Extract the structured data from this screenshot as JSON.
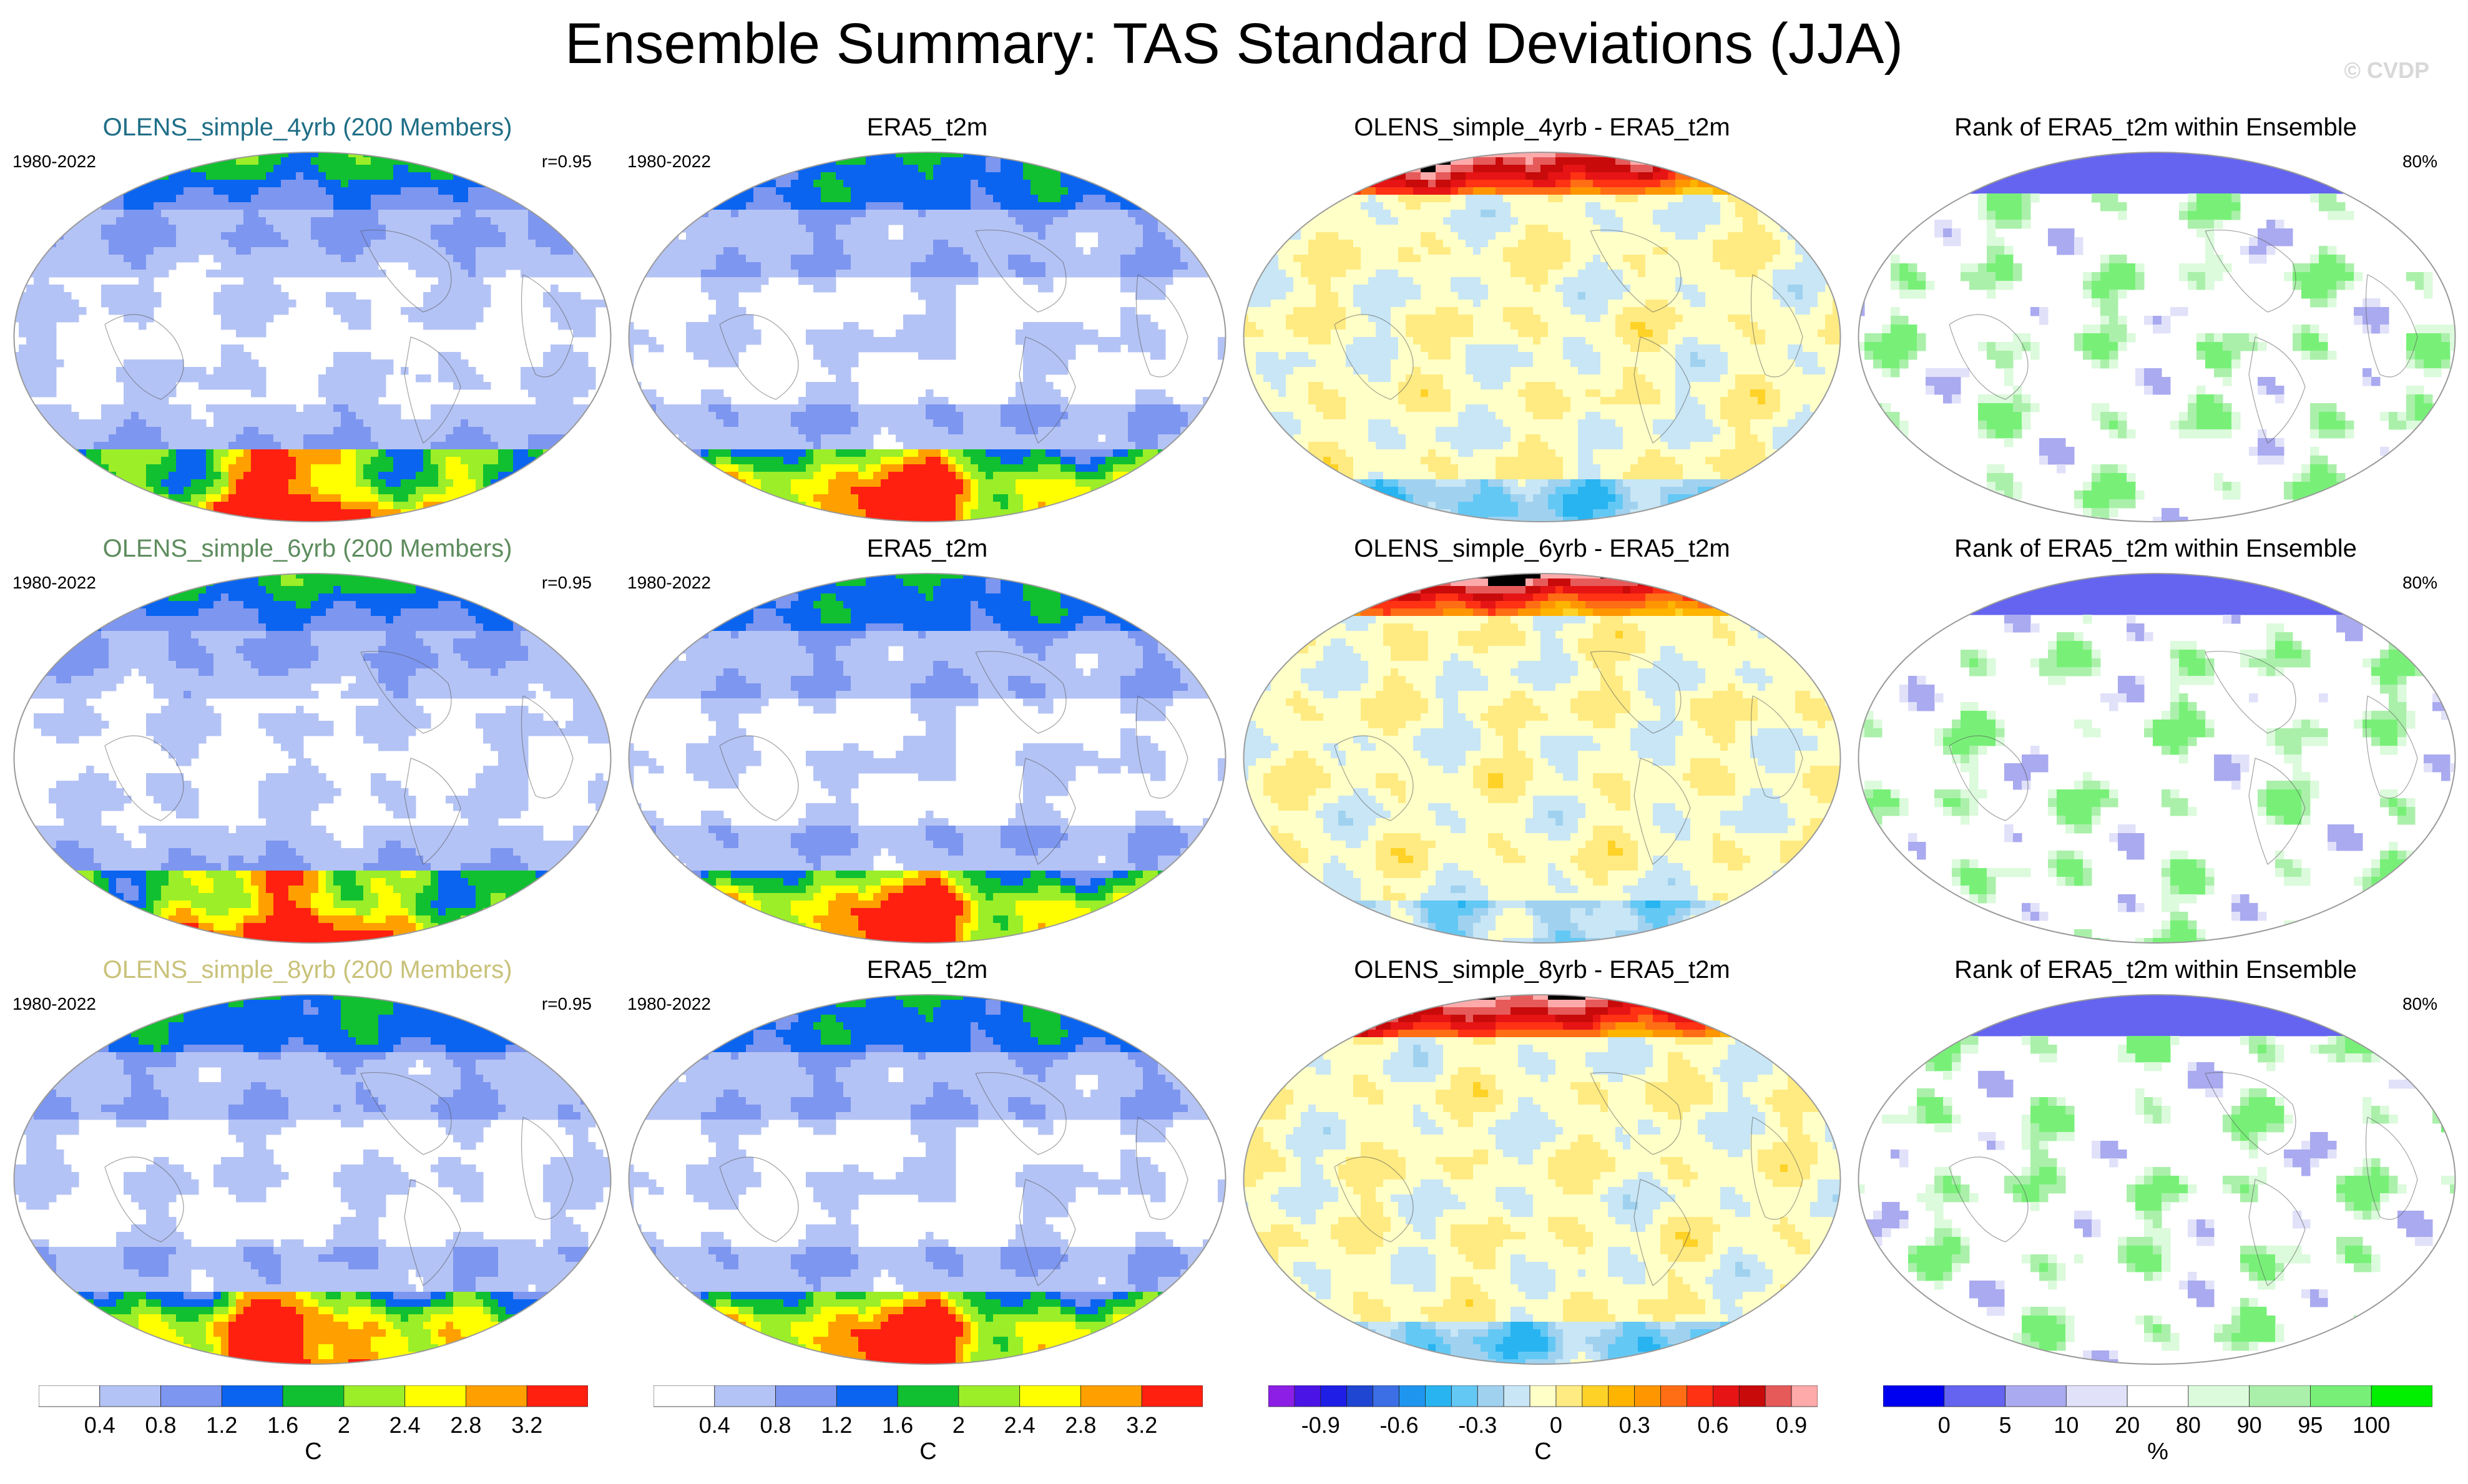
{
  "title": "Ensemble Summary: TAS Standard Deviations (JJA)",
  "watermark": "© CVDP",
  "rows": [
    {
      "ensemble_title": "OLENS_simple_4yrb (200 Members)",
      "ensemble_title_color": "#1f6e86",
      "period": "1980-2022",
      "pattern_corr": "r=0.95",
      "obs_title": "ERA5_t2m",
      "obs_period": "1980-2022",
      "diff_title": "OLENS_simple_4yrb - ERA5_t2m",
      "rank_title": "Rank of ERA5_t2m within Ensemble",
      "rank_pct": "80%"
    },
    {
      "ensemble_title": "OLENS_simple_6yrb (200 Members)",
      "ensemble_title_color": "#5e8c5e",
      "period": "1980-2022",
      "pattern_corr": "r=0.95",
      "obs_title": "ERA5_t2m",
      "obs_period": "1980-2022",
      "diff_title": "OLENS_simple_6yrb - ERA5_t2m",
      "rank_title": "Rank of ERA5_t2m within Ensemble",
      "rank_pct": "80%"
    },
    {
      "ensemble_title": "OLENS_simple_8yrb (200 Members)",
      "ensemble_title_color": "#c9c27a",
      "period": "1980-2022",
      "pattern_corr": "r=0.95",
      "obs_title": "ERA5_t2m",
      "obs_period": "1980-2022",
      "diff_title": "OLENS_simple_8yrb - ERA5_t2m",
      "rank_title": "Rank of ERA5_t2m within Ensemble",
      "rank_pct": "80%"
    }
  ],
  "chart_data": [
    {
      "type": "heatmap",
      "name": "tas standard deviation (ensemble mean and ERA5)",
      "units": "C",
      "levels": [
        0.4,
        0.8,
        1.2,
        1.6,
        2,
        2.4,
        2.8,
        3.2
      ],
      "tick_labels": [
        "0.4",
        "0.8",
        "1.2",
        "1.6",
        "2",
        "2.4",
        "2.8",
        "3.2"
      ],
      "colors": [
        "#ffffff",
        "#b4c3f5",
        "#7d96f0",
        "#0a64f0",
        "#10c030",
        "#9bee28",
        "#ffff00",
        "#ffa000",
        "#ff2010"
      ]
    },
    {
      "type": "heatmap",
      "name": "ensemble minus ERA5 difference",
      "units": "C",
      "levels": [
        -1.0,
        -0.9,
        -0.8,
        -0.7,
        -0.6,
        -0.5,
        -0.4,
        -0.3,
        -0.2,
        -0.1,
        0,
        0.1,
        0.2,
        0.3,
        0.4,
        0.5,
        0.6,
        0.7,
        0.8,
        0.9,
        1.0
      ],
      "tick_labels": [
        "-0.9",
        "-0.6",
        "-0.3",
        "0",
        "0.3",
        "0.6",
        "0.9"
      ],
      "colors": [
        "#8c1ee6",
        "#4b14e6",
        "#1e1ee6",
        "#1e46d2",
        "#3c6ee6",
        "#1e96f0",
        "#28b4f0",
        "#64c8f5",
        "#a0d2f0",
        "#c8e6f5",
        "#ffffc8",
        "#ffeb82",
        "#ffd228",
        "#ffb400",
        "#ff9600",
        "#ff6e14",
        "#ff3214",
        "#e61414",
        "#c80a0a",
        "#e65a5a",
        "#ffaaaa"
      ]
    },
    {
      "type": "heatmap",
      "name": "rank of ERA5 within ensemble",
      "units": "%",
      "levels": [
        0,
        5,
        10,
        20,
        80,
        90,
        95,
        100
      ],
      "tick_labels": [
        "0",
        "5",
        "10",
        "20",
        "80",
        "90",
        "95",
        "100"
      ],
      "colors": [
        "#0000f0",
        "#6464f0",
        "#aaaaf0",
        "#e1e1fa",
        "#ffffff",
        "#dcfadc",
        "#aaf0aa",
        "#78f078",
        "#00f000"
      ]
    }
  ]
}
